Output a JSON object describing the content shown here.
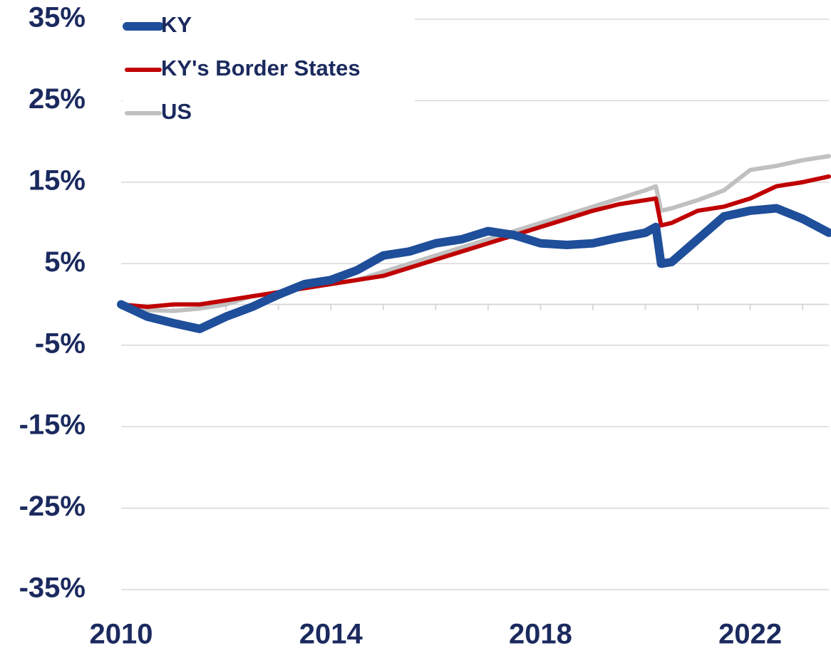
{
  "chart_data": {
    "type": "line",
    "x": [
      2010,
      2010.5,
      2011,
      2011.5,
      2012,
      2012.5,
      2013,
      2013.5,
      2014,
      2014.5,
      2015,
      2015.5,
      2016,
      2016.5,
      2017,
      2017.5,
      2018,
      2018.5,
      2019,
      2019.5,
      2020,
      2020.2,
      2020.3,
      2020.5,
      2021,
      2021.5,
      2022,
      2022.5,
      2023,
      2023.5
    ],
    "series": [
      {
        "name": "KY",
        "color": "#1f4e9a",
        "values": [
          0,
          -1.5,
          -2.3,
          -3,
          -1.5,
          -0.3,
          1.2,
          2.5,
          3,
          4.2,
          6,
          6.5,
          7.5,
          8,
          9,
          8.5,
          7.5,
          7.3,
          7.5,
          8.2,
          8.8,
          9.5,
          5,
          5.2,
          8,
          10.8,
          11.5,
          11.8,
          10.5,
          8.8
        ]
      },
      {
        "name": "KY's Border States",
        "color": "#c00000",
        "values": [
          0,
          -0.3,
          0,
          0,
          0.5,
          1,
          1.5,
          2,
          2.5,
          3,
          3.5,
          4.5,
          5.5,
          6.5,
          7.5,
          8.5,
          9.5,
          10.5,
          11.5,
          12.3,
          12.8,
          13,
          9.7,
          10,
          11.5,
          12,
          13,
          14.5,
          15,
          15.7
        ]
      },
      {
        "name": "US",
        "color": "#c0c0c0",
        "values": [
          0,
          -0.7,
          -0.8,
          -0.5,
          0,
          1,
          1.5,
          2,
          2.5,
          3,
          4,
          5,
          6,
          7,
          8,
          9,
          10,
          11,
          12,
          13,
          14,
          14.5,
          11.5,
          11.8,
          12.8,
          14,
          16.5,
          17,
          17.7,
          18.2
        ]
      }
    ],
    "xlim": [
      2010,
      2023.5
    ],
    "xticks": [
      2010,
      2014,
      2018,
      2022
    ],
    "xtick_marks": [
      2010,
      2011,
      2012,
      2013,
      2014,
      2015,
      2016,
      2017,
      2018,
      2019,
      2020,
      2021,
      2022,
      2023
    ],
    "ylim": [
      -35,
      35
    ],
    "yticks": [
      {
        "value": -35,
        "label": "-35%"
      },
      {
        "value": -25,
        "label": "-25%"
      },
      {
        "value": -15,
        "label": "-15%"
      },
      {
        "value": -5,
        "label": "-5%"
      },
      {
        "value": 5,
        "label": "5%"
      },
      {
        "value": 15,
        "label": "15%"
      },
      {
        "value": 25,
        "label": "25%"
      },
      {
        "value": 35,
        "label": "35%"
      }
    ],
    "grid": true,
    "legend": "top-left"
  }
}
